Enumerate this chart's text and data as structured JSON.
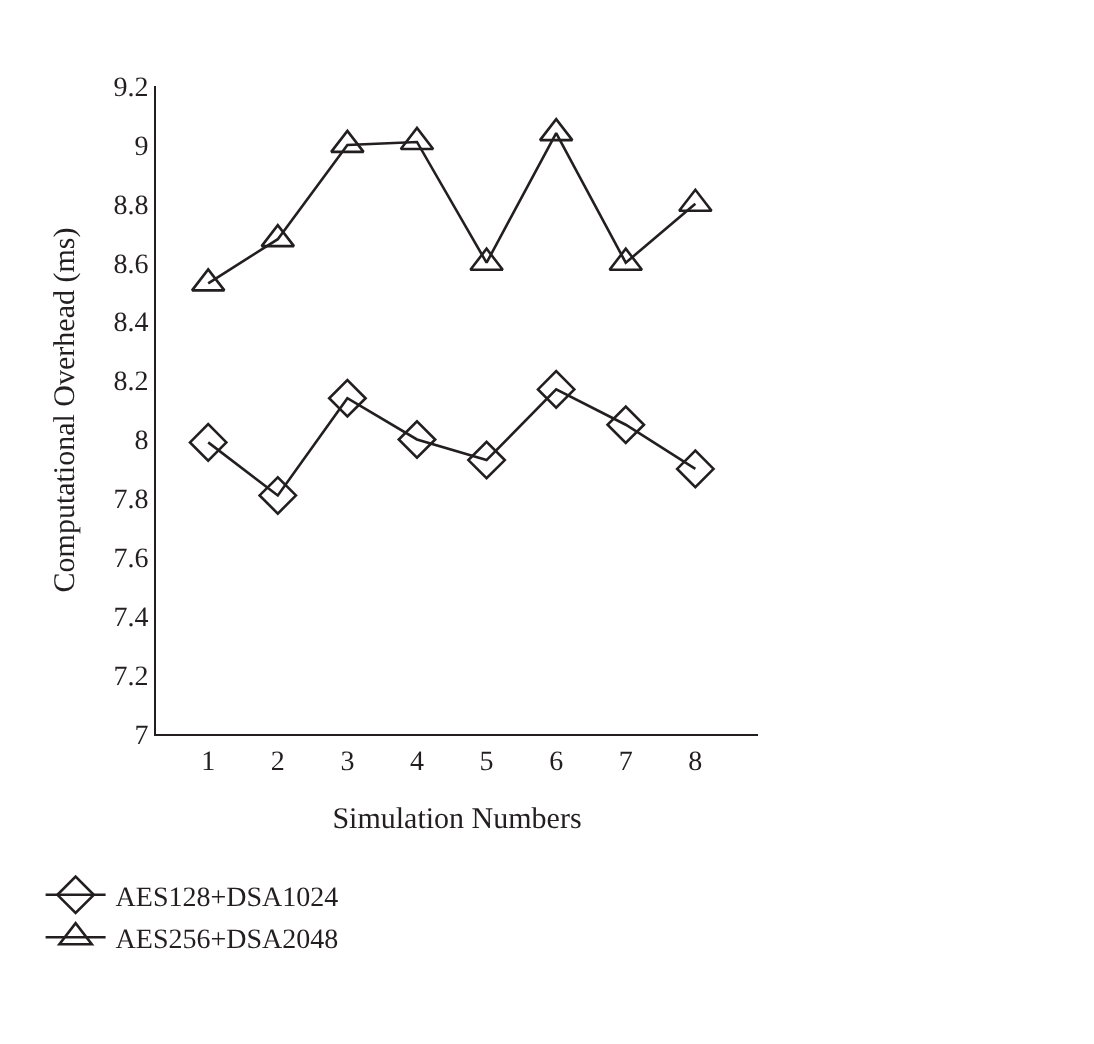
{
  "chart_data": {
    "type": "line",
    "xlabel": "Simulation Numbers",
    "ylabel": "Computational Overhead (ms)",
    "categories": [
      "1",
      "2",
      "3",
      "4",
      "5",
      "6",
      "7",
      "8"
    ],
    "series": [
      {
        "name": "AES128+DSA1024",
        "color": "#231f20",
        "marker": "diamond",
        "values": [
          7.99,
          7.81,
          8.14,
          8.0,
          7.93,
          8.17,
          8.05,
          7.9
        ]
      },
      {
        "name": "AES256+DSA2048",
        "color": "#231f20",
        "marker": "triangle",
        "values": [
          8.53,
          8.68,
          9.0,
          9.01,
          8.6,
          9.04,
          8.6,
          8.8
        ]
      }
    ],
    "ylim": [
      7,
      9.2
    ],
    "yticks": [
      7,
      7.2,
      7.4,
      7.6,
      7.8,
      8,
      8.2,
      8.4,
      8.6,
      8.8,
      9,
      9.2
    ],
    "legend": "bottom left",
    "line_style": "solid"
  }
}
